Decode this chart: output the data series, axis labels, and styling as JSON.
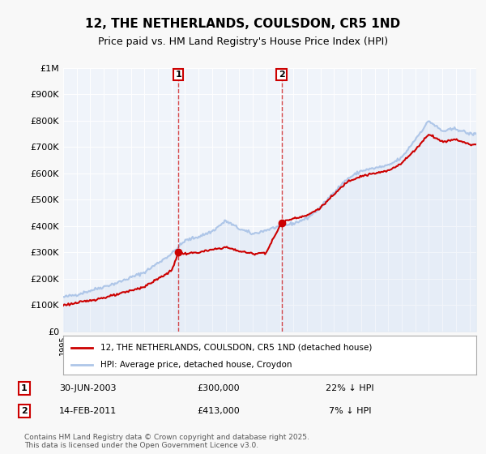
{
  "title": "12, THE NETHERLANDS, COULSDON, CR5 1ND",
  "subtitle": "Price paid vs. HM Land Registry's House Price Index (HPI)",
  "ylabel_top": "£1M",
  "yticks": [
    0,
    100000,
    200000,
    300000,
    400000,
    500000,
    600000,
    700000,
    800000,
    900000,
    1000000
  ],
  "ytick_labels": [
    "£0",
    "£100K",
    "£200K",
    "£300K",
    "£400K",
    "£500K",
    "£600K",
    "£700K",
    "£800K",
    "£900K",
    "£1M"
  ],
  "hpi_color": "#aec6e8",
  "price_color": "#cc0000",
  "marker_color": "#cc0000",
  "sale1_date": "30-JUN-2003",
  "sale1_price": 300000,
  "sale1_hpi_diff": "22% ↓ HPI",
  "sale2_date": "14-FEB-2011",
  "sale2_price": 413000,
  "sale2_hpi_diff": "7% ↓ HPI",
  "legend1": "12, THE NETHERLANDS, COULSDON, CR5 1ND (detached house)",
  "legend2": "HPI: Average price, detached house, Croydon",
  "footnote": "Contains HM Land Registry data © Crown copyright and database right 2025.\nThis data is licensed under the Open Government Licence v3.0.",
  "background_color": "#f0f4fa",
  "plot_background": "#ffffff",
  "vline1_x": 2003.5,
  "vline2_x": 2011.12,
  "xmin": 1995,
  "xmax": 2025.5,
  "ymin": 0,
  "ymax": 1000000
}
